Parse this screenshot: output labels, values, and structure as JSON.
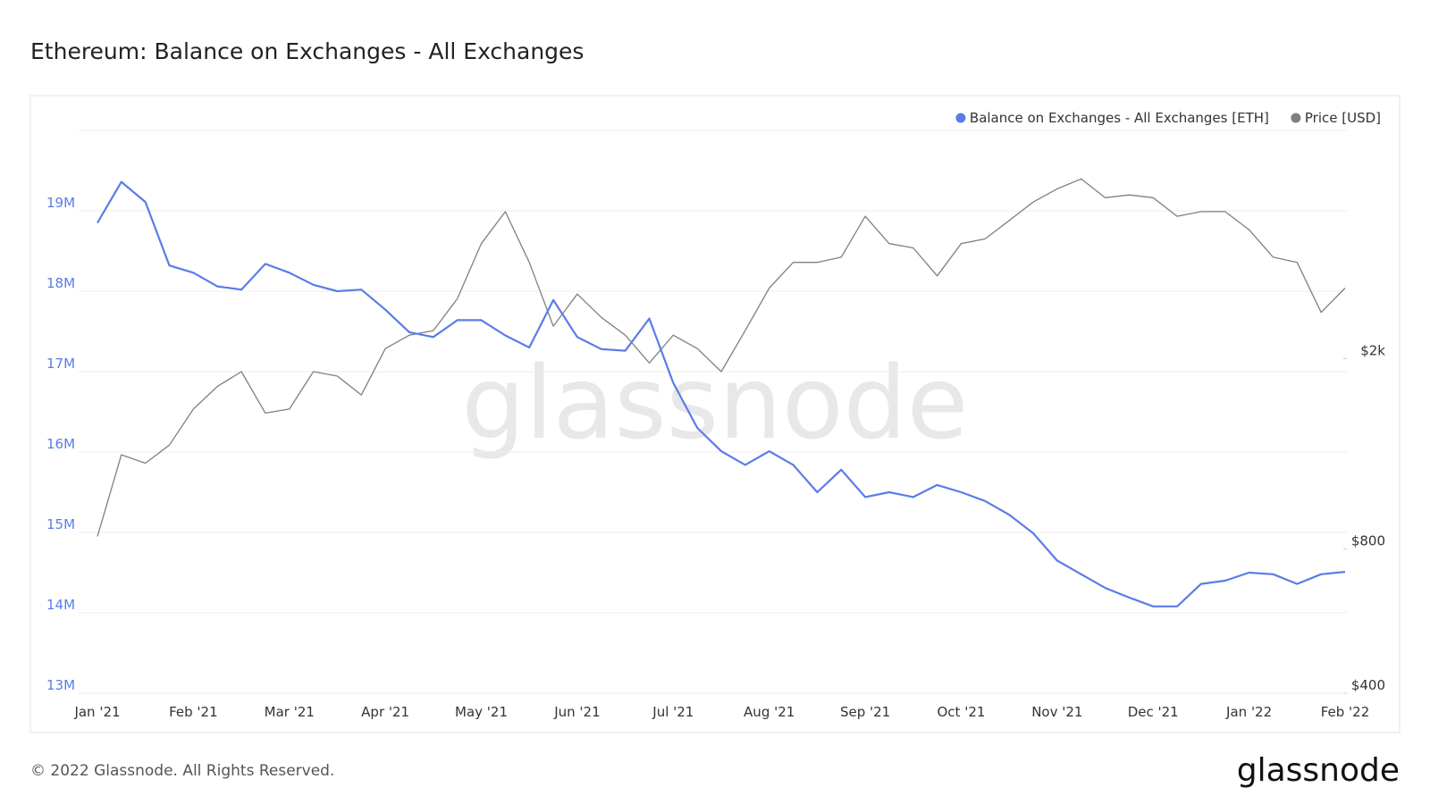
{
  "chart_data": {
    "type": "line",
    "title": "Ethereum: Balance on Exchanges - All Exchanges",
    "watermark": "glassnode",
    "footer": "© 2022 Glassnode. All Rights Reserved.",
    "logo": "glassnode",
    "categories": [
      "Jan '21",
      null,
      null,
      null,
      "Feb '21",
      null,
      null,
      null,
      "Mar '21",
      null,
      null,
      null,
      "Apr '21",
      null,
      null,
      null,
      "May '21",
      null,
      null,
      null,
      "Jun '21",
      null,
      null,
      null,
      "Jul '21",
      null,
      null,
      null,
      "Aug '21",
      null,
      null,
      null,
      "Sep '21",
      null,
      null,
      null,
      "Oct '21",
      null,
      null,
      null,
      "Nov '21",
      null,
      null,
      null,
      "Dec '21",
      null,
      null,
      null,
      "Jan '22",
      null,
      null,
      null,
      "Feb '22"
    ],
    "series": [
      {
        "name": "Balance on Exchanges - All Exchanges [ETH]",
        "color": "#5b7be8",
        "values": [
          18850000,
          19360000,
          19110000,
          18320000,
          18230000,
          18060000,
          18020000,
          18340000,
          18230000,
          18080000,
          18000000,
          18020000,
          17770000,
          17490000,
          17430000,
          17640000,
          17640000,
          17450000,
          17300000,
          17890000,
          17430000,
          17280000,
          17260000,
          17660000,
          16860000,
          16300000,
          16010000,
          15840000,
          16010000,
          15840000,
          15500000,
          15780000,
          15440000,
          15500000,
          15440000,
          15590000,
          15500000,
          15390000,
          15220000,
          14990000,
          14650000,
          14480000,
          14310000,
          14190000,
          14080000,
          14080000,
          14360000,
          14400000,
          14500000,
          14480000,
          14360000,
          14480000,
          14510000
        ]
      },
      {
        "name": "Price [USD]",
        "color": "#808080",
        "axis": "y2",
        "values": [
          850,
          1260,
          1210,
          1320,
          1570,
          1750,
          1880,
          1540,
          1570,
          1880,
          1840,
          1680,
          2100,
          2240,
          2290,
          2670,
          3480,
          4060,
          3180,
          2340,
          2730,
          2440,
          2240,
          1960,
          2240,
          2100,
          1880,
          2290,
          2810,
          3180,
          3180,
          3260,
          3970,
          3480,
          3410,
          2980,
          3480,
          3560,
          3890,
          4250,
          4530,
          4750,
          4340,
          4400,
          4340,
          3970,
          4060,
          4060,
          3720,
          3260,
          3180,
          2500,
          2810
        ]
      }
    ],
    "ylim": [
      13000000,
      20000000
    ],
    "yticks": [
      {
        "value": 13000000,
        "label": "13M"
      },
      {
        "value": 14000000,
        "label": "14M"
      },
      {
        "value": 15000000,
        "label": "15M"
      },
      {
        "value": 16000000,
        "label": "16M"
      },
      {
        "value": 17000000,
        "label": "17M"
      },
      {
        "value": 18000000,
        "label": "18M"
      },
      {
        "value": 19000000,
        "label": "19M"
      }
    ],
    "y2lim": [
      400,
      6000
    ],
    "y2log": true,
    "y2ticks": [
      {
        "value": 400,
        "label": "$400"
      },
      {
        "value": 800,
        "label": "$800"
      },
      {
        "value": 2000,
        "label": "$2k"
      }
    ],
    "grid": true
  }
}
